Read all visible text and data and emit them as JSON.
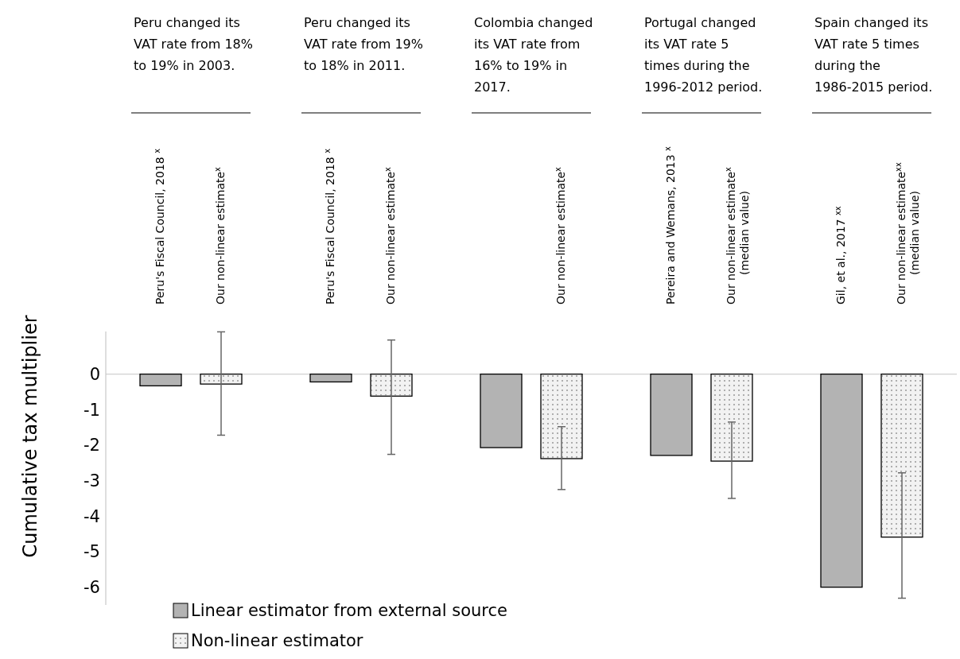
{
  "chart_data": {
    "type": "bar",
    "ylabel": "Cumulative tax multiplier",
    "categories": [
      "Peru's Fiscal Council, 2018 $^{x}$",
      "Our non-linear estimate$^{x}$",
      "Peru's Fiscal Council, 2018 $^{x}$",
      "Our non-linear estimate$^{x}$",
      null,
      "Our non-linear estimate$^{x}$",
      "Pereira and Wemans, 2013 $^{x}$",
      "Our non-linear estimate$^{x}$\n(median value)",
      "Gil, et al., 2017 $^{xx}$",
      "Our non-linear estimate$^{xx}$\n(median value)"
    ],
    "series": [
      {
        "name": "Linear estimator from external source",
        "color": "#b3b3b3",
        "values": [
          -0.33,
          null,
          -0.22,
          null,
          -2.07,
          null,
          -2.29,
          null,
          -6.0,
          null
        ]
      },
      {
        "name": "Non-linear estimator",
        "color": "#f2f2f2",
        "values": [
          null,
          -0.28,
          null,
          -0.62,
          null,
          -2.38,
          null,
          -2.45,
          null,
          -4.59
        ],
        "errors": [
          null,
          [
            -1.72,
            1.19
          ],
          null,
          [
            -2.26,
            0.96
          ],
          null,
          [
            -3.25,
            -1.48
          ],
          null,
          [
            -3.5,
            -1.35
          ],
          null,
          [
            -6.31,
            -2.78
          ]
        ]
      }
    ],
    "ylim": [
      -6.5,
      1.2
    ],
    "yticks": [
      0,
      -1,
      -2,
      -3,
      -4,
      -5,
      -6
    ],
    "legend": "bottom left",
    "annotations": [
      "Peru changed its VAT rate from 18% to 19% in 2003.",
      "Peru changed its VAT rate from 19% to 18% in 2011.",
      "Colombia changed its VAT rate from 16% to 19% in 2017.",
      "Portugal changed its VAT rate 5 times during the 1996-2012 period.",
      "Spain changed its VAT rate 5 times during the 1986-2015 period."
    ]
  }
}
